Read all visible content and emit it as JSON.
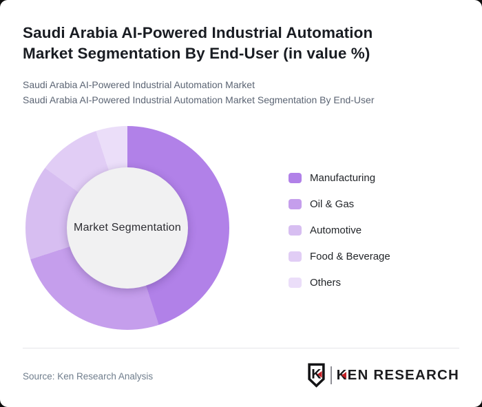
{
  "window": {
    "background": "#0d0d0d",
    "card_background": "#ffffff"
  },
  "header": {
    "title_line1": "Saudi Arabia AI-Powered Industrial Automation",
    "title_line2": "Market Segmentation By End-User (in value %)",
    "subtitle_line1": "Saudi Arabia AI-Powered Industrial Automation Market",
    "subtitle_line2": "Saudi Arabia AI-Powered Industrial Automation Market Segmentation By End-User"
  },
  "chart_data": {
    "type": "pie",
    "subtype": "donut",
    "title": "Saudi Arabia AI-Powered Industrial Automation Market Segmentation By End-User (in value %)",
    "center_label": "Market Segmentation",
    "unit": "% of market value",
    "start_angle_deg": 0,
    "direction": "clockwise",
    "legend_position": "right",
    "note": "Slice percentages are not labeled in the image; values estimated from arc angles.",
    "slices": [
      {
        "label": "Manufacturing",
        "value": 45,
        "color": "#b181e8"
      },
      {
        "label": "Oil & Gas",
        "value": 25,
        "color": "#c59eec"
      },
      {
        "label": "Automotive",
        "value": 15,
        "color": "#d7bef1"
      },
      {
        "label": "Food & Beverage",
        "value": 10,
        "color": "#e1cdf5"
      },
      {
        "label": "Others",
        "value": 5,
        "color": "#ebdef9"
      }
    ],
    "hole_color": "#f1f1f2"
  },
  "footer": {
    "source": "Source: Ken Research Analysis",
    "logo": {
      "shield_letter": "K",
      "wordmark": "KEN RESEARCH",
      "accent_red": "#c42127",
      "ink": "#1c1c1f"
    }
  }
}
